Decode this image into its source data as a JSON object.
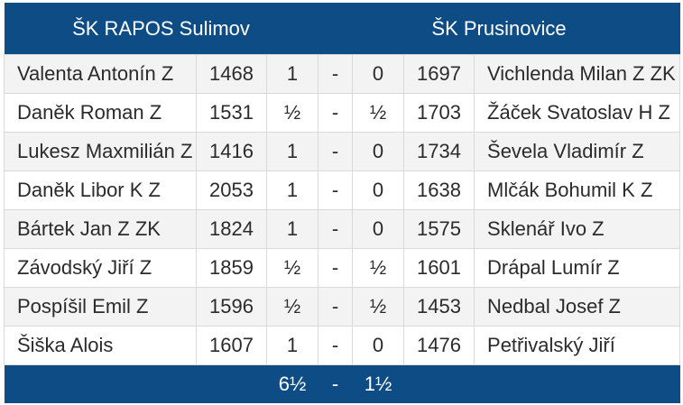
{
  "teams": {
    "home": "ŠK RAPOS Sulimov",
    "away": "ŠK Prusinovice"
  },
  "boards": [
    {
      "home_player": "Valenta Antonín Z",
      "home_rating": "1468",
      "home_score": "1",
      "sep": "-",
      "away_score": "0",
      "away_rating": "1697",
      "away_player": "Vichlenda Milan Z ZK"
    },
    {
      "home_player": "Daněk Roman Z",
      "home_rating": "1531",
      "home_score": "½",
      "sep": "-",
      "away_score": "½",
      "away_rating": "1703",
      "away_player": "Žáček Svatoslav H Z"
    },
    {
      "home_player": "Lukesz Maxmilián Z",
      "home_rating": "1416",
      "home_score": "1",
      "sep": "-",
      "away_score": "0",
      "away_rating": "1734",
      "away_player": "Ševela Vladimír Z"
    },
    {
      "home_player": "Daněk Libor K Z",
      "home_rating": "2053",
      "home_score": "1",
      "sep": "-",
      "away_score": "0",
      "away_rating": "1638",
      "away_player": "Mlčák Bohumil K Z"
    },
    {
      "home_player": "Bártek Jan Z ZK",
      "home_rating": "1824",
      "home_score": "1",
      "sep": "-",
      "away_score": "0",
      "away_rating": "1575",
      "away_player": "Sklenář Ivo Z"
    },
    {
      "home_player": "Závodský Jiří Z",
      "home_rating": "1859",
      "home_score": "½",
      "sep": "-",
      "away_score": "½",
      "away_rating": "1601",
      "away_player": "Drápal Lumír Z"
    },
    {
      "home_player": "Pospíšil Emil Z",
      "home_rating": "1596",
      "home_score": "½",
      "sep": "-",
      "away_score": "½",
      "away_rating": "1453",
      "away_player": "Nedbal Josef Z"
    },
    {
      "home_player": "Šiška Alois",
      "home_rating": "1607",
      "home_score": "1",
      "sep": "-",
      "away_score": "0",
      "away_rating": "1476",
      "away_player": "Petřivalský Jiří"
    }
  ],
  "total": {
    "home": "6½",
    "sep": "-",
    "away": "1½"
  },
  "colors": {
    "header_bg": "#0e4c86",
    "row_alt_bg": "#f3f3f3",
    "row_bg": "#ffffff"
  }
}
